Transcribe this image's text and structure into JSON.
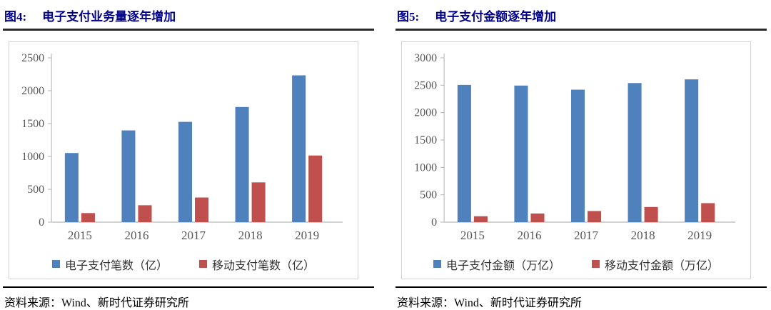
{
  "colors": {
    "series_blue": "#4F81BD",
    "series_red": "#C0504D",
    "title_text": "#00008B",
    "title_rule": "#2B2B2B",
    "box_border": "#D4D4D4",
    "axis_line": "#B3B3B3",
    "baseline": "#D2D2D2",
    "axis_text": "#595959",
    "legend_text": "#333333",
    "footer_text": "#000000"
  },
  "figures": [
    {
      "label": "图4:",
      "title": "电子支付业务量逐年增加",
      "source_label": "资料来源：",
      "source": "Wind、新时代证券研究所"
    },
    {
      "label": "图5:",
      "title": "电子支付金额逐年增加",
      "source_label": "资料来源：",
      "source": "Wind、新时代证券研究所"
    }
  ],
  "chart_data": [
    {
      "type": "bar",
      "title": "图4: 电子支付业务量逐年增加",
      "categories": [
        "2015",
        "2016",
        "2017",
        "2018",
        "2019"
      ],
      "series": [
        {
          "name": "电子支付笔数（亿）",
          "color": "#4F81BD",
          "values": [
            1052,
            1396,
            1526,
            1752,
            2234
          ]
        },
        {
          "name": "移动支付笔数（亿）",
          "color": "#C0504D",
          "values": [
            138,
            257,
            375,
            605,
            1014
          ]
        }
      ],
      "xlabel": "",
      "ylabel": "",
      "ylim": [
        0,
        2500
      ],
      "ytick_step": 500,
      "grid": false,
      "legend_position": "bottom"
    },
    {
      "type": "bar",
      "title": "图5: 电子支付金额逐年增加",
      "categories": [
        "2015",
        "2016",
        "2017",
        "2018",
        "2019"
      ],
      "series": [
        {
          "name": "电子支付金额（万亿）",
          "color": "#4F81BD",
          "values": [
            2506,
            2494,
            2419,
            2540,
            2607
          ]
        },
        {
          "name": "移动支付金额（万亿）",
          "color": "#C0504D",
          "values": [
            108,
            158,
            203,
            277,
            347
          ]
        }
      ],
      "xlabel": "",
      "ylabel": "",
      "ylim": [
        0,
        3000
      ],
      "ytick_step": 500,
      "grid": false,
      "legend_position": "bottom"
    }
  ]
}
